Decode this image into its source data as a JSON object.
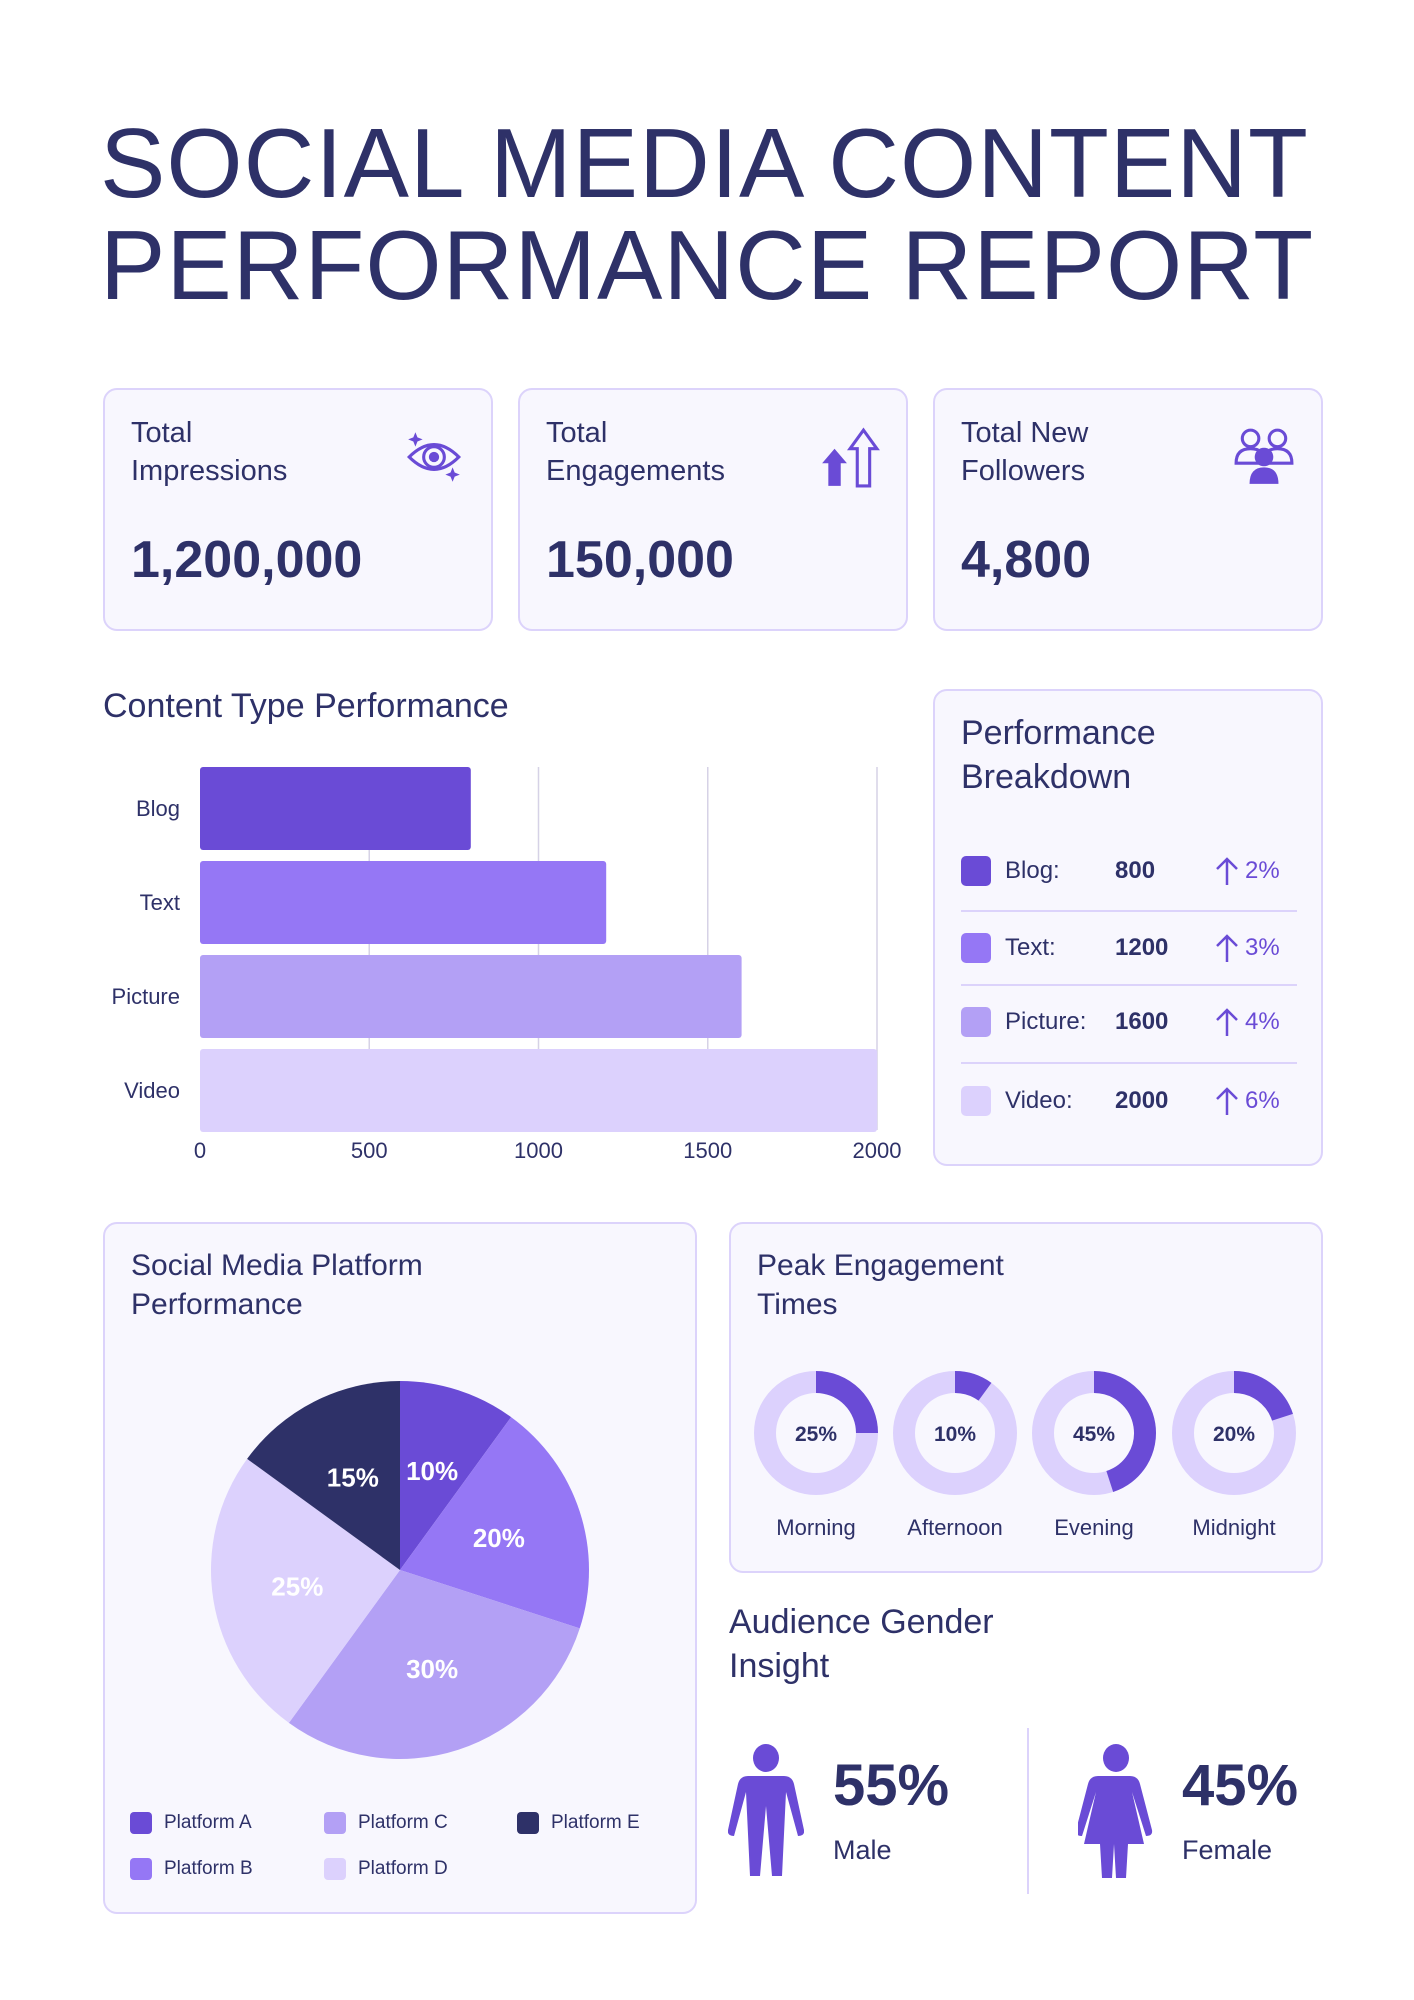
{
  "title": "SOCIAL MEDIA CONTENT PERFORMANCE REPORT",
  "stats": [
    {
      "label": "Total Impressions",
      "value": "1,200,000",
      "icon": "eye-sparkle-icon"
    },
    {
      "label": "Total Engagements",
      "value": "150,000",
      "icon": "arrows-up-icon"
    },
    {
      "label": "Total New Followers",
      "value": "4,800",
      "icon": "users-icon"
    }
  ],
  "colors": {
    "primary": "#6a4bd6",
    "secondary": "#9577f5",
    "tertiary": "#b3a0f5",
    "light": "#dcd1fd",
    "navy": "#2e3168"
  },
  "chart_data": [
    {
      "type": "bar",
      "orientation": "horizontal",
      "title": "Content Type Performance",
      "categories": [
        "Blog",
        "Text",
        "Picture",
        "Video"
      ],
      "values": [
        800,
        1200,
        1600,
        2000
      ],
      "xlim": [
        0,
        2000
      ],
      "xticks": [
        "0",
        "500",
        "1000",
        "1500",
        "2000"
      ],
      "grid": true,
      "colors": [
        "#6a4bd6",
        "#9577f5",
        "#b3a0f5",
        "#dcd1fd"
      ]
    },
    {
      "type": "pie",
      "title": "Social Media Platform Performance",
      "categories": [
        "Platform A",
        "Platform B",
        "Platform C",
        "Platform D",
        "Platform E"
      ],
      "values": [
        10,
        20,
        30,
        25,
        15
      ],
      "labels": [
        "10%",
        "20%",
        "30%",
        "25%",
        "15%"
      ],
      "colors": [
        "#6a4bd6",
        "#9577f5",
        "#b3a0f5",
        "#dcd1fd",
        "#2e3168"
      ],
      "legend": "bottom"
    },
    {
      "type": "donut",
      "title": "Peak Engagement Times",
      "categories": [
        "Morning",
        "Afternoon",
        "Evening",
        "Midnight"
      ],
      "values": [
        25,
        10,
        45,
        20
      ],
      "labels": [
        "25%",
        "10%",
        "45%",
        "20%"
      ]
    }
  ],
  "breakdown": {
    "title": "Performance Breakdown",
    "rows": [
      {
        "label": "Blog:",
        "value": "800",
        "change": "2%",
        "color": "#6a4bd6"
      },
      {
        "label": "Text:",
        "value": "1200",
        "change": "3%",
        "color": "#9577f5"
      },
      {
        "label": "Picture:",
        "value": "1600",
        "change": "4%",
        "color": "#b3a0f5"
      },
      {
        "label": "Video:",
        "value": "2000",
        "change": "6%",
        "color": "#dcd1fd"
      }
    ]
  },
  "gender": {
    "title": "Audience Gender Insight",
    "male": {
      "pct": "55%",
      "label": "Male"
    },
    "female": {
      "pct": "45%",
      "label": "Female"
    }
  }
}
